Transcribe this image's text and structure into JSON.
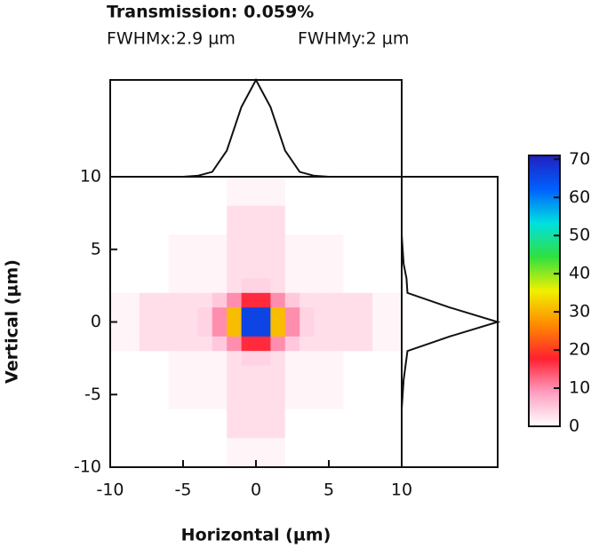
{
  "chart_data": {
    "type": "heatmap",
    "title": "Transmission: 0.059%",
    "annotations": [
      "FWHMx:2.9 µm",
      "FWHMy:2 µm"
    ],
    "x_label": "Horizontal (µm)",
    "y_label": "Vertical (µm)",
    "xlim": [
      -10,
      10
    ],
    "ylim": [
      -10,
      10
    ],
    "xticks": [
      -10,
      -5,
      0,
      5,
      10
    ],
    "yticks": [
      -10,
      -5,
      0,
      5,
      10
    ],
    "z": [
      [
        0,
        0,
        0,
        0,
        0,
        0,
        0,
        0,
        1,
        1,
        1,
        1,
        0,
        0,
        0,
        0,
        0,
        0,
        0,
        0
      ],
      [
        0,
        0,
        0,
        0,
        0,
        0,
        0,
        0,
        1,
        1,
        1,
        1,
        0,
        0,
        0,
        0,
        0,
        0,
        0,
        0
      ],
      [
        0,
        0,
        0,
        0,
        0,
        0,
        0,
        0,
        3,
        3,
        3,
        3,
        0,
        0,
        0,
        0,
        0,
        0,
        0,
        0
      ],
      [
        0,
        0,
        0,
        0,
        0,
        0,
        0,
        0,
        3,
        3,
        3,
        3,
        0,
        0,
        0,
        0,
        0,
        0,
        0,
        0
      ],
      [
        0,
        0,
        0,
        0,
        1,
        1,
        1,
        1,
        3,
        3,
        3,
        3,
        1,
        1,
        1,
        1,
        0,
        0,
        0,
        0
      ],
      [
        0,
        0,
        0,
        0,
        1,
        1,
        1,
        1,
        3,
        3,
        3,
        3,
        1,
        1,
        1,
        1,
        0,
        0,
        0,
        0
      ],
      [
        0,
        0,
        0,
        0,
        1,
        1,
        1,
        1,
        3,
        3,
        3,
        3,
        1,
        1,
        1,
        1,
        0,
        0,
        0,
        0
      ],
      [
        0,
        0,
        0,
        0,
        1,
        1,
        1,
        1,
        3,
        4,
        4,
        3,
        1,
        1,
        1,
        1,
        0,
        0,
        0,
        0
      ],
      [
        1,
        1,
        3,
        3,
        3,
        3,
        3,
        5,
        10,
        17,
        17,
        10,
        5,
        3,
        3,
        3,
        3,
        3,
        1,
        1
      ],
      [
        1,
        1,
        3,
        3,
        3,
        3,
        4,
        10,
        31,
        66,
        66,
        31,
        10,
        4,
        3,
        3,
        3,
        3,
        1,
        1
      ],
      [
        1,
        1,
        3,
        3,
        3,
        3,
        4,
        10,
        31,
        66,
        66,
        31,
        10,
        4,
        3,
        3,
        3,
        3,
        1,
        1
      ],
      [
        1,
        1,
        3,
        3,
        3,
        3,
        3,
        5,
        10,
        17,
        17,
        10,
        5,
        3,
        3,
        3,
        3,
        3,
        1,
        1
      ],
      [
        0,
        0,
        0,
        0,
        1,
        1,
        1,
        1,
        3,
        4,
        4,
        3,
        1,
        1,
        1,
        1,
        0,
        0,
        0,
        0
      ],
      [
        0,
        0,
        0,
        0,
        1,
        1,
        1,
        1,
        3,
        3,
        3,
        3,
        1,
        1,
        1,
        1,
        0,
        0,
        0,
        0
      ],
      [
        0,
        0,
        0,
        0,
        1,
        1,
        1,
        1,
        3,
        3,
        3,
        3,
        1,
        1,
        1,
        1,
        0,
        0,
        0,
        0
      ],
      [
        0,
        0,
        0,
        0,
        1,
        1,
        1,
        1,
        3,
        3,
        3,
        3,
        1,
        1,
        1,
        1,
        0,
        0,
        0,
        0
      ],
      [
        0,
        0,
        0,
        0,
        0,
        0,
        0,
        0,
        3,
        3,
        3,
        3,
        0,
        0,
        0,
        0,
        0,
        0,
        0,
        0
      ],
      [
        0,
        0,
        0,
        0,
        0,
        0,
        0,
        0,
        3,
        3,
        3,
        3,
        0,
        0,
        0,
        0,
        0,
        0,
        0,
        0
      ],
      [
        0,
        0,
        0,
        0,
        0,
        0,
        0,
        0,
        1,
        1,
        1,
        1,
        0,
        0,
        0,
        0,
        0,
        0,
        0,
        0
      ],
      [
        0,
        0,
        0,
        0,
        0,
        0,
        0,
        0,
        1,
        1,
        1,
        1,
        0,
        0,
        0,
        0,
        0,
        0,
        0,
        0
      ]
    ],
    "zlim": [
      0,
      71
    ],
    "zticks": [
      0,
      10,
      20,
      30,
      40,
      50,
      60,
      70
    ],
    "colormap": [
      "#ffffff",
      "#ff9ec0",
      "#ff2030",
      "#ff8a00",
      "#f0f000",
      "#30e040",
      "#00e0e0",
      "#0060ff",
      "#2020c0"
    ],
    "profile_lim": [
      0,
      1
    ],
    "profile_x": {
      "x": [
        -10,
        -9,
        -8,
        -7,
        -6,
        -5,
        -4,
        -3,
        -2,
        -1,
        0,
        1,
        2,
        3,
        4,
        5,
        6,
        7,
        8,
        9,
        10
      ],
      "values": [
        0,
        0,
        0,
        0,
        0,
        0,
        0.01,
        0.05,
        0.27,
        0.72,
        1,
        0.72,
        0.27,
        0.05,
        0.01,
        0,
        0,
        0,
        0,
        0,
        0
      ]
    },
    "profile_y": {
      "y": [
        -10,
        -9,
        -8,
        -7,
        -6,
        -5,
        -4,
        -3,
        -2,
        -1,
        0,
        1,
        2,
        3,
        4,
        5,
        6,
        7,
        8,
        9,
        10
      ],
      "values": [
        0,
        0,
        0,
        0,
        0,
        0.01,
        0.02,
        0.04,
        0.06,
        0.5,
        1,
        0.5,
        0.06,
        0.05,
        0.02,
        0.01,
        0,
        0,
        0,
        0,
        0
      ]
    }
  }
}
